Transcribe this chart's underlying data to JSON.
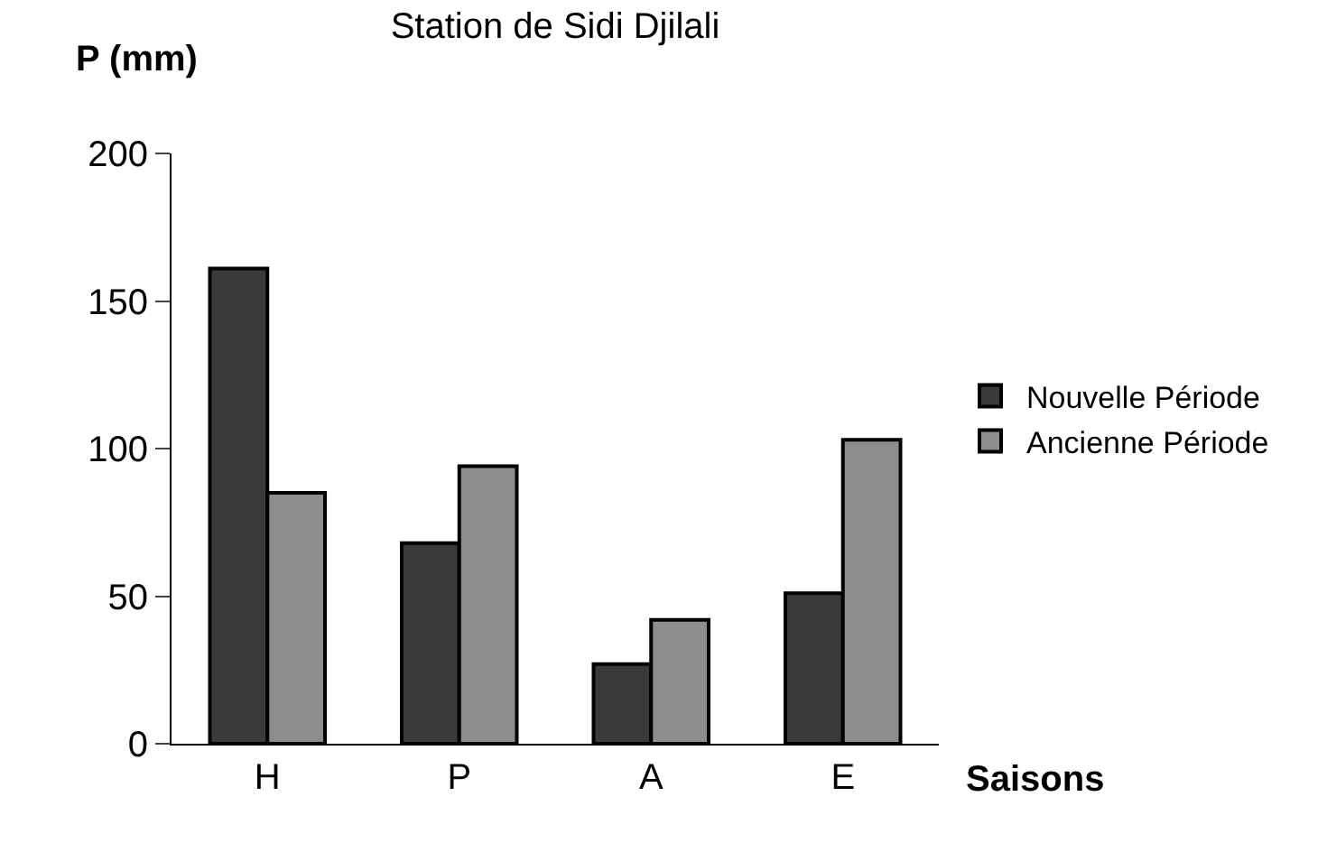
{
  "chart_data": {
    "type": "bar",
    "title": "Station de Sidi Djilali",
    "xlabel": "Saisons",
    "ylabel": "P (mm)",
    "categories": [
      "H",
      "P",
      "A",
      "E"
    ],
    "series": [
      {
        "name": "Nouvelle Période",
        "color": "#3a3a3a",
        "values": [
          161,
          68,
          27,
          51
        ]
      },
      {
        "name": "Ancienne Période",
        "color": "#8c8c8c",
        "values": [
          85,
          94,
          42,
          103
        ]
      }
    ],
    "ylim": [
      0,
      200
    ],
    "yticks": [
      0,
      50,
      100,
      150,
      200
    ],
    "grid": false,
    "legend": "right"
  }
}
